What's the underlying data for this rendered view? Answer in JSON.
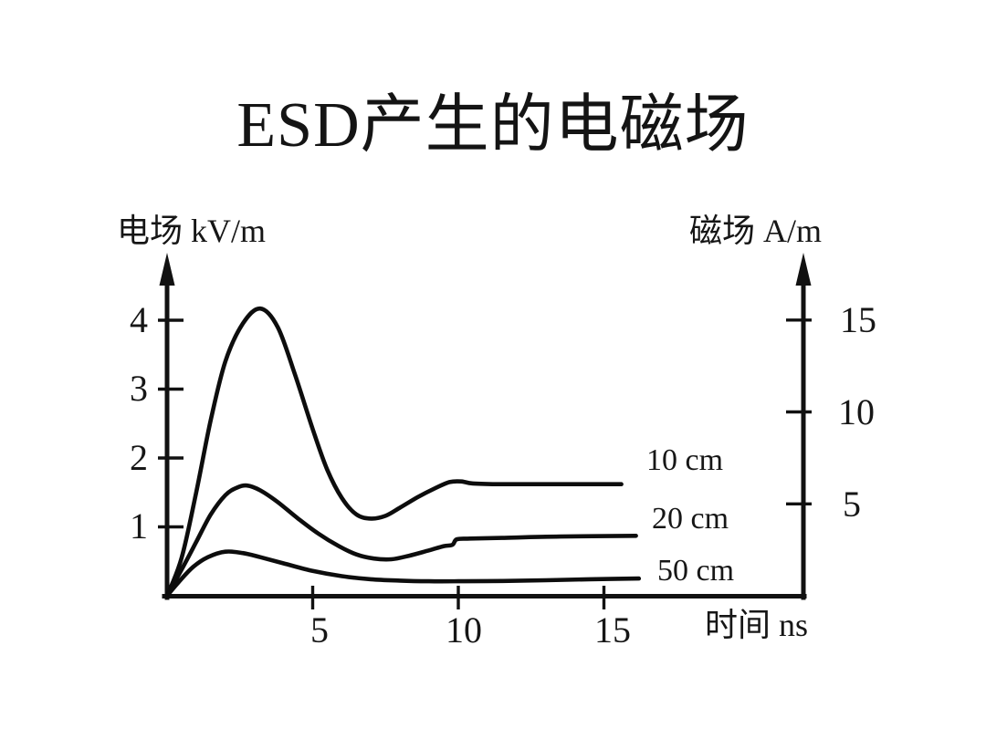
{
  "chart_data": {
    "type": "line",
    "title": "ESD产生的电磁场",
    "x_axis": {
      "label": "时间 ns",
      "ticks": [
        "5",
        "10",
        "15"
      ],
      "range": [
        0,
        17
      ]
    },
    "y_left": {
      "label": "电场 kV/m",
      "ticks": [
        "1",
        "2",
        "3",
        "4"
      ],
      "range": [
        0,
        4.6
      ]
    },
    "y_right": {
      "label": "磁场 A/m",
      "ticks": [
        "5",
        "10",
        "15"
      ],
      "range": [
        0,
        17.5
      ]
    },
    "grid": false,
    "legend_position": "right-of-curves",
    "series": [
      {
        "label": "10 cm",
        "peak_kv_per_m": 4.2,
        "steady_kv_per_m": 1.6,
        "points": [
          [
            0,
            0
          ],
          [
            0.5,
            0.55
          ],
          [
            1,
            1.5
          ],
          [
            1.5,
            2.55
          ],
          [
            2,
            3.4
          ],
          [
            2.6,
            3.95
          ],
          [
            3.2,
            4.17
          ],
          [
            3.8,
            3.9
          ],
          [
            4.4,
            3.2
          ],
          [
            5,
            2.42
          ],
          [
            5.5,
            1.83
          ],
          [
            6,
            1.42
          ],
          [
            6.5,
            1.18
          ],
          [
            7,
            1.12
          ],
          [
            7.5,
            1.16
          ],
          [
            8,
            1.28
          ],
          [
            8.6,
            1.43
          ],
          [
            9.2,
            1.56
          ],
          [
            9.7,
            1.65
          ],
          [
            10.1,
            1.66
          ],
          [
            10.5,
            1.63
          ],
          [
            11.5,
            1.62
          ],
          [
            13.5,
            1.62
          ],
          [
            15.6,
            1.62
          ]
        ]
      },
      {
        "label": "20 cm",
        "peak_kv_per_m": 1.6,
        "steady_kv_per_m": 0.85,
        "points": [
          [
            0,
            0
          ],
          [
            0.5,
            0.38
          ],
          [
            1,
            0.78
          ],
          [
            1.5,
            1.18
          ],
          [
            2,
            1.46
          ],
          [
            2.4,
            1.57
          ],
          [
            2.75,
            1.6
          ],
          [
            3.2,
            1.53
          ],
          [
            3.8,
            1.36
          ],
          [
            4.5,
            1.12
          ],
          [
            5.2,
            0.9
          ],
          [
            5.9,
            0.72
          ],
          [
            6.5,
            0.6
          ],
          [
            7.1,
            0.54
          ],
          [
            7.7,
            0.53
          ],
          [
            8.3,
            0.58
          ],
          [
            9,
            0.66
          ],
          [
            9.5,
            0.72
          ],
          [
            9.8,
            0.74
          ],
          [
            9.95,
            0.82
          ],
          [
            10.4,
            0.83
          ],
          [
            11.5,
            0.84
          ],
          [
            13.5,
            0.86
          ],
          [
            16.1,
            0.87
          ]
        ]
      },
      {
        "label": "50 cm",
        "peak_kv_per_m": 0.64,
        "steady_kv_per_m": 0.23,
        "points": [
          [
            0,
            0
          ],
          [
            0.4,
            0.2
          ],
          [
            0.9,
            0.42
          ],
          [
            1.4,
            0.56
          ],
          [
            2,
            0.64
          ],
          [
            2.6,
            0.62
          ],
          [
            3.2,
            0.56
          ],
          [
            4,
            0.47
          ],
          [
            5,
            0.36
          ],
          [
            6,
            0.285
          ],
          [
            7,
            0.24
          ],
          [
            8,
            0.22
          ],
          [
            9,
            0.21
          ],
          [
            10,
            0.21
          ],
          [
            11.5,
            0.215
          ],
          [
            13,
            0.225
          ],
          [
            14.5,
            0.24
          ],
          [
            16.2,
            0.25
          ]
        ]
      }
    ]
  }
}
